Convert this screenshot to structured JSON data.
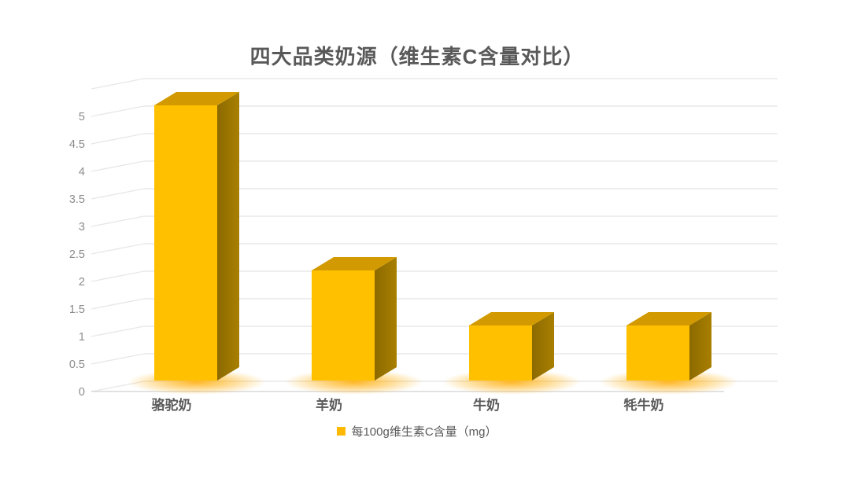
{
  "title": "四大品类奶源（维生素C含量对比）",
  "chart_data": {
    "type": "bar",
    "variant": "3d-column",
    "title": "四大品类奶源（维生素C含量对比）",
    "categories": [
      "骆驼奶",
      "羊奶",
      "牛奶",
      "牦牛奶"
    ],
    "series": [
      {
        "name": "每100g维生素C含量（mg）",
        "values": [
          5,
          2,
          1,
          1
        ]
      }
    ],
    "xlabel": "",
    "ylabel": "",
    "ylim": [
      0,
      5
    ],
    "ytick_step": 0.5,
    "yticks": [
      0,
      0.5,
      1,
      1.5,
      2,
      2.5,
      3,
      3.5,
      4,
      4.5,
      5
    ],
    "grid": true,
    "legend_position": "bottom",
    "colors": {
      "bar_front": "#FFC000",
      "bar_top": "#D29A00",
      "bar_side_dark": "#8C6A00",
      "bar_side_light": "#A87F00",
      "glow": "#FFAB00",
      "gridline": "#E8E8E8",
      "axis_line": "#D9D9D9",
      "title_text": "#595959",
      "tick_text": "#8C8C8C",
      "label_text": "#595959"
    }
  },
  "legend": {
    "marker_color": "#FFB900",
    "label": "每100g维生素C含量（mg）"
  }
}
